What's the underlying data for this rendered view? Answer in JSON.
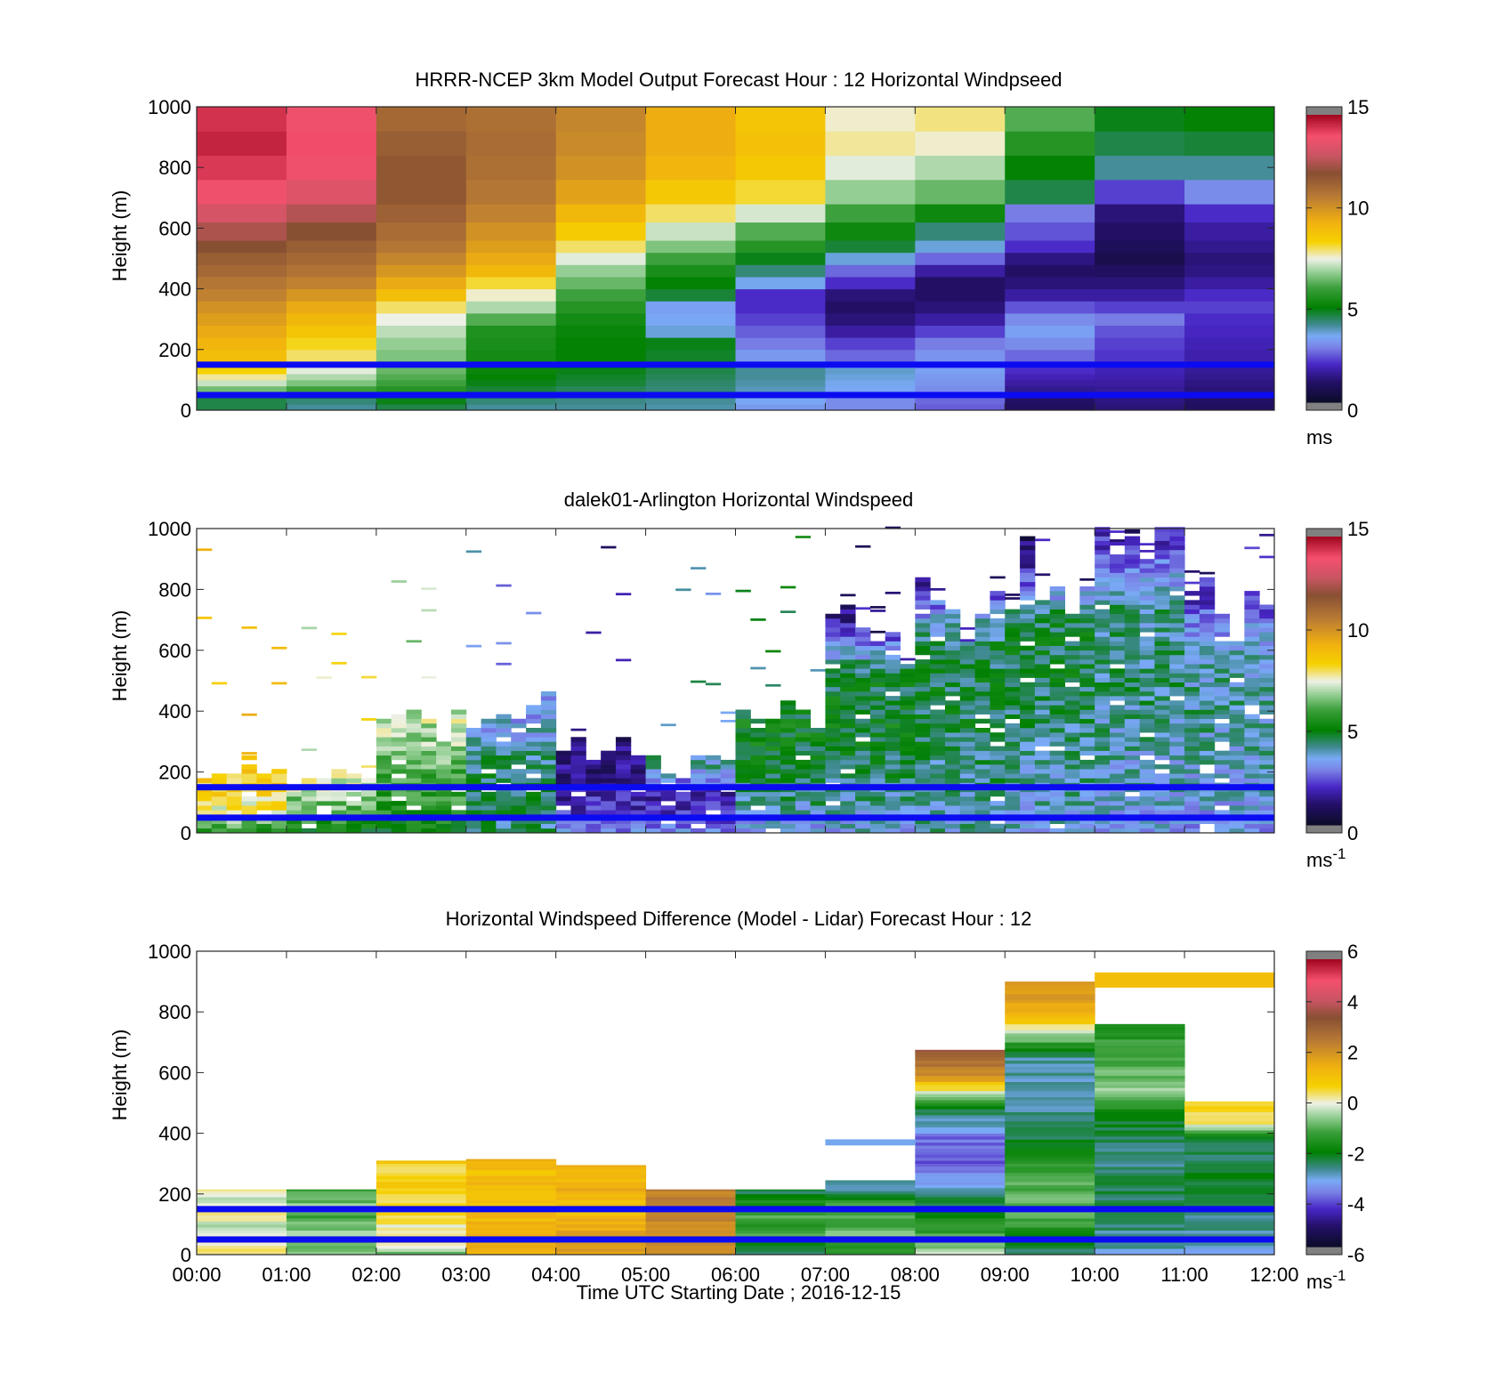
{
  "chart_data": [
    {
      "type": "heatmap",
      "title": "HRRR-NCEP 3km Model Output   Forecast Hour : 12 Horizontal Windpseed",
      "ylabel": "Height (m)",
      "xlabel": "",
      "ylim": [
        0,
        1000
      ],
      "yticks": [
        "0",
        "200",
        "400",
        "600",
        "800",
        "1000"
      ],
      "colorbar": {
        "min": 0,
        "max": 15,
        "ticks": [
          "0",
          "5",
          "10",
          "15"
        ],
        "unit_main": "ms",
        "unit_sup": ""
      },
      "reference_lines_m": [
        150,
        50
      ],
      "cell_edges_m": [
        0,
        20,
        40,
        60,
        80,
        100,
        120,
        140,
        160,
        200,
        240,
        280,
        320,
        360,
        400,
        440,
        480,
        520,
        560,
        620,
        680,
        760,
        840,
        920,
        1000
      ],
      "columns": [
        {
          "start": "00:00",
          "values": [
            4.5,
            4.5,
            5.5,
            6.5,
            7.2,
            7.8,
            8.4,
            8.8,
            9.0,
            9.3,
            9.6,
            9.9,
            10.2,
            10.6,
            10.9,
            11.3,
            11.6,
            12.0,
            12.5,
            13.2,
            13.8,
            14.3,
            14.6,
            14.4
          ]
        },
        {
          "start": "01:00",
          "values": [
            4.0,
            4.2,
            5.0,
            6.0,
            6.6,
            7.0,
            7.4,
            7.7,
            8.0,
            8.3,
            8.8,
            9.2,
            9.6,
            10.1,
            10.6,
            11.0,
            11.3,
            11.6,
            12.0,
            12.6,
            13.4,
            13.8,
            14.0,
            13.8
          ]
        },
        {
          "start": "02:00",
          "values": [
            4.5,
            4.8,
            5.2,
            5.6,
            6.0,
            6.2,
            6.4,
            6.5,
            6.6,
            6.8,
            7.1,
            7.5,
            8.0,
            9.0,
            9.6,
            10.1,
            10.5,
            10.9,
            11.2,
            11.5,
            11.8,
            11.8,
            11.6,
            11.3
          ]
        },
        {
          "start": "03:00",
          "values": [
            4.0,
            4.2,
            4.4,
            4.6,
            4.8,
            5.0,
            5.1,
            5.2,
            5.3,
            5.4,
            5.5,
            6.2,
            7.0,
            7.6,
            8.2,
            9.2,
            9.6,
            9.9,
            10.2,
            10.6,
            10.9,
            11.1,
            11.2,
            11.1
          ]
        },
        {
          "start": "04:00",
          "values": [
            4.0,
            4.1,
            4.2,
            4.4,
            4.6,
            4.7,
            4.8,
            4.9,
            5.0,
            5.0,
            5.1,
            5.3,
            5.6,
            6.0,
            6.4,
            6.8,
            7.4,
            8.0,
            8.6,
            9.2,
            9.8,
            10.2,
            10.4,
            10.5
          ]
        },
        {
          "start": "05:00",
          "values": [
            3.9,
            4.0,
            4.1,
            4.2,
            4.3,
            4.4,
            4.5,
            4.6,
            4.7,
            4.8,
            3.6,
            3.4,
            3.3,
            4.6,
            5.0,
            5.4,
            6.0,
            6.6,
            7.2,
            8.0,
            8.7,
            9.3,
            9.5,
            9.5
          ]
        },
        {
          "start": "06:00",
          "values": [
            3.2,
            3.4,
            3.6,
            3.8,
            3.9,
            4.0,
            4.0,
            3.8,
            3.2,
            2.8,
            2.5,
            2.2,
            2.0,
            2.0,
            3.5,
            4.2,
            4.8,
            5.6,
            6.2,
            7.3,
            8.2,
            8.7,
            8.9,
            8.8
          ]
        },
        {
          "start": "07:00",
          "values": [
            3.0,
            3.0,
            3.2,
            3.4,
            3.5,
            3.6,
            3.7,
            3.4,
            2.6,
            2.2,
            1.6,
            1.2,
            1.0,
            1.2,
            2.0,
            2.6,
            3.6,
            4.6,
            5.2,
            6.0,
            6.8,
            7.4,
            7.8,
            7.6
          ]
        },
        {
          "start": "08:00",
          "values": [
            2.5,
            2.6,
            2.8,
            3.0,
            3.1,
            3.2,
            3.3,
            3.2,
            3.1,
            2.8,
            2.2,
            1.6,
            1.2,
            1.0,
            1.0,
            1.6,
            2.6,
            3.6,
            4.2,
            5.2,
            6.4,
            7.0,
            7.6,
            7.9
          ]
        },
        {
          "start": "09:00",
          "values": [
            0.9,
            1.0,
            1.2,
            1.4,
            1.6,
            1.8,
            2.0,
            2.2,
            2.6,
            3.0,
            3.3,
            3.0,
            2.4,
            1.6,
            1.2,
            1.0,
            1.3,
            2.0,
            2.4,
            2.8,
            4.5,
            5.0,
            5.6,
            6.2
          ]
        },
        {
          "start": "10:00",
          "values": [
            1.2,
            1.3,
            1.4,
            1.5,
            1.6,
            1.7,
            1.8,
            2.0,
            2.1,
            2.2,
            2.4,
            2.8,
            2.2,
            1.6,
            1.2,
            0.9,
            0.6,
            0.8,
            1.0,
            1.2,
            2.2,
            4.0,
            4.5,
            4.8
          ]
        },
        {
          "start": "11:00",
          "values": [
            0.9,
            1.0,
            1.1,
            1.2,
            1.3,
            1.4,
            1.5,
            1.6,
            1.7,
            1.8,
            1.9,
            2.0,
            2.2,
            2.0,
            1.6,
            1.3,
            1.2,
            1.4,
            1.6,
            2.0,
            3.0,
            4.0,
            4.6,
            5.0
          ]
        }
      ]
    },
    {
      "type": "heatmap",
      "title": "dalek01-Arlington  Horizontal Windspeed",
      "ylabel": "Height (m)",
      "xlabel": "",
      "ylim": [
        0,
        1000
      ],
      "yticks": [
        "0",
        "200",
        "400",
        "600",
        "800",
        "1000"
      ],
      "colorbar": {
        "min": 0,
        "max": 15,
        "ticks": [
          "0",
          "5",
          "10",
          "15"
        ],
        "unit_main": "ms",
        "unit_sup": "-1"
      },
      "reference_lines_m": [
        150,
        50
      ],
      "bins_per_hour": 6,
      "gate_m": 15,
      "hourly_profile": [
        {
          "start": "00:00",
          "top_m": 220,
          "wind": [
            5.6,
            7.5,
            8.2,
            8.5,
            8.6
          ]
        },
        {
          "start": "01:00",
          "top_m": 215,
          "wind": [
            5.2,
            6.0,
            6.8,
            7.3,
            7.6
          ]
        },
        {
          "start": "02:00",
          "top_m": 380,
          "wind": [
            5.0,
            5.7,
            6.2,
            6.8,
            7.2
          ]
        },
        {
          "start": "03:00",
          "top_m": 420,
          "wind": [
            4.1,
            4.6,
            4.4,
            3.6,
            3.2
          ]
        },
        {
          "start": "04:00",
          "top_m": 300,
          "wind": [
            3.0,
            2.0,
            1.5,
            1.2,
            1.0
          ]
        },
        {
          "start": "05:00",
          "top_m": 230,
          "wind": [
            2.8,
            2.2,
            1.6,
            3.2,
            4.0
          ]
        },
        {
          "start": "06:00",
          "top_m": 440,
          "wind": [
            3.2,
            4.2,
            4.6,
            4.9,
            4.8
          ]
        },
        {
          "start": "07:00",
          "top_m": 690,
          "wind": [
            3.5,
            4.3,
            4.8,
            4.6,
            1.5
          ]
        },
        {
          "start": "08:00",
          "top_m": 820,
          "wind": [
            3.8,
            4.2,
            4.6,
            4.4,
            1.8
          ]
        },
        {
          "start": "09:00",
          "top_m": 920,
          "wind": [
            3.6,
            4.0,
            4.5,
            4.6,
            1.0
          ]
        },
        {
          "start": "10:00",
          "top_m": 1000,
          "wind": [
            3.4,
            3.8,
            4.2,
            4.0,
            1.6
          ]
        },
        {
          "start": "11:00",
          "top_m": 780,
          "wind": [
            3.2,
            3.6,
            4.0,
            3.8,
            1.8
          ]
        }
      ]
    },
    {
      "type": "heatmap",
      "title": "Horizontal Windspeed Difference (Model - Lidar) Forecast Hour : 12",
      "ylabel": "Height (m)",
      "xlabel": "Time UTC  Starting Date ; 2016-12-15",
      "ylim": [
        0,
        1000
      ],
      "yticks": [
        "0",
        "200",
        "400",
        "600",
        "800",
        "1000"
      ],
      "xticks": [
        "00:00",
        "01:00",
        "02:00",
        "03:00",
        "04:00",
        "05:00",
        "06:00",
        "07:00",
        "08:00",
        "09:00",
        "10:00",
        "11:00",
        "12:00"
      ],
      "colorbar": {
        "min": -6,
        "max": 6,
        "ticks": [
          "-6",
          "-4",
          "-2",
          "0",
          "2",
          "4",
          "6"
        ],
        "unit_main": "ms",
        "unit_sup": "-1"
      },
      "reference_lines_m": [
        150,
        50
      ],
      "column_tops_m": [
        215,
        215,
        310,
        315,
        295,
        215,
        215,
        245,
        675,
        900,
        760,
        505
      ],
      "column_profiles": [
        {
          "start": "00:00",
          "values": [
            0.6,
            0.3,
            0.0,
            -0.4,
            0.5,
            0.2,
            -0.3,
            0.4
          ]
        },
        {
          "start": "01:00",
          "values": [
            -0.6,
            -1.0,
            -0.4,
            -0.8,
            -1.2,
            -0.6,
            -1.0,
            -1.4
          ]
        },
        {
          "start": "02:00",
          "values": [
            -0.8,
            0.4,
            0.2,
            0.6,
            0.3,
            0.8,
            0.5,
            1.0
          ]
        },
        {
          "start": "03:00",
          "values": [
            1.6,
            1.8,
            1.4,
            1.2,
            1.0,
            1.3,
            1.1,
            1.6
          ]
        },
        {
          "start": "04:00",
          "values": [
            1.8,
            2.0,
            1.6,
            1.4,
            1.2,
            1.5,
            1.3,
            1.7
          ]
        },
        {
          "start": "05:00",
          "values": [
            2.2,
            2.4,
            2.0,
            2.2,
            2.6,
            2.8,
            2.4,
            2.6
          ]
        },
        {
          "start": "06:00",
          "values": [
            -2.8,
            -1.8,
            -1.2,
            -1.6,
            -1.0,
            -1.4,
            -2.0,
            -2.6
          ]
        },
        {
          "start": "07:00",
          "values": [
            -1.8,
            -1.2,
            -0.8,
            -1.4,
            -1.0,
            -1.6,
            -3.2,
            -2.4
          ]
        },
        {
          "start": "08:00",
          "values": [
            -0.4,
            -1.6,
            -2.6,
            -4.2,
            -3.8,
            -2.0,
            2.0,
            3.6
          ]
        },
        {
          "start": "09:00",
          "values": [
            -2.6,
            -0.8,
            -1.2,
            -2.4,
            -3.0,
            -2.8,
            1.2,
            2.4
          ]
        },
        {
          "start": "10:00",
          "values": [
            -3.0,
            -2.6,
            -2.4,
            -2.8,
            -2.2,
            -0.6,
            -1.2,
            -1.6
          ]
        },
        {
          "start": "11:00",
          "values": [
            -3.2,
            -2.8,
            -2.6,
            -2.4,
            -2.2,
            -2.8,
            0.4,
            0.6
          ]
        }
      ],
      "segments": [
        {
          "start": "07:00",
          "from_m": 360,
          "to_m": 380,
          "value": -3.2
        },
        {
          "start": "10:00",
          "from_m": 880,
          "to_m": 930,
          "value": 1.2
        },
        {
          "start": "11:00",
          "from_m": 880,
          "to_m": 930,
          "value": 1.2
        }
      ]
    }
  ]
}
